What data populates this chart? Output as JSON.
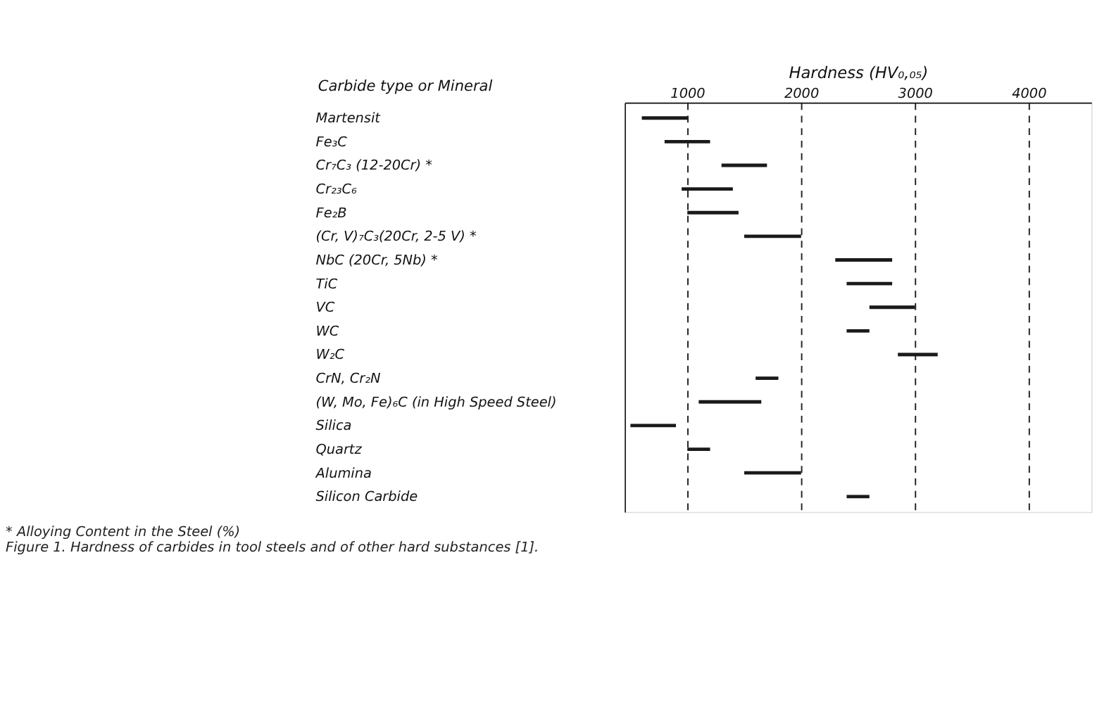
{
  "chart_data": {
    "type": "bar",
    "orientation": "horizontal",
    "xlabel": "Hardness (HV₀,₀₅)",
    "ylabel": "Carbide type or Mineral",
    "categories": [
      "Martensit",
      "Fe₃C",
      "Cr₇C₃  (12-20Cr) *",
      "Cr₂₃C₆",
      "Fe₂B",
      "(Cr, V)₇C₃(20Cr, 2-5 V) *",
      "NbC  (20Cr, 5Nb) *",
      "TiC",
      "VC",
      "WC",
      "W₂C",
      "CrN, Cr₂N",
      "(W, Mo, Fe)₆C (in High Speed Steel)",
      "Silica",
      "Quartz",
      "Alumina",
      "Silicon Carbide"
    ],
    "base": [
      600,
      800,
      1300,
      950,
      1000,
      1500,
      2300,
      2400,
      2600,
      2400,
      2850,
      1600,
      1100,
      500,
      1000,
      1500,
      2400
    ],
    "values": [
      400,
      400,
      400,
      450,
      450,
      500,
      500,
      400,
      400,
      200,
      350,
      200,
      550,
      400,
      200,
      500,
      200
    ],
    "color": "#1a1a1a",
    "xlim": [
      450,
      4550
    ],
    "xticks": [
      1000,
      2000,
      3000,
      4000
    ],
    "grid": "x",
    "annotations": [
      "* Alloying Content in the Steel (%)",
      "Figure 1.    Hardness of carbides in tool steels and of other hard substances [1]."
    ]
  }
}
